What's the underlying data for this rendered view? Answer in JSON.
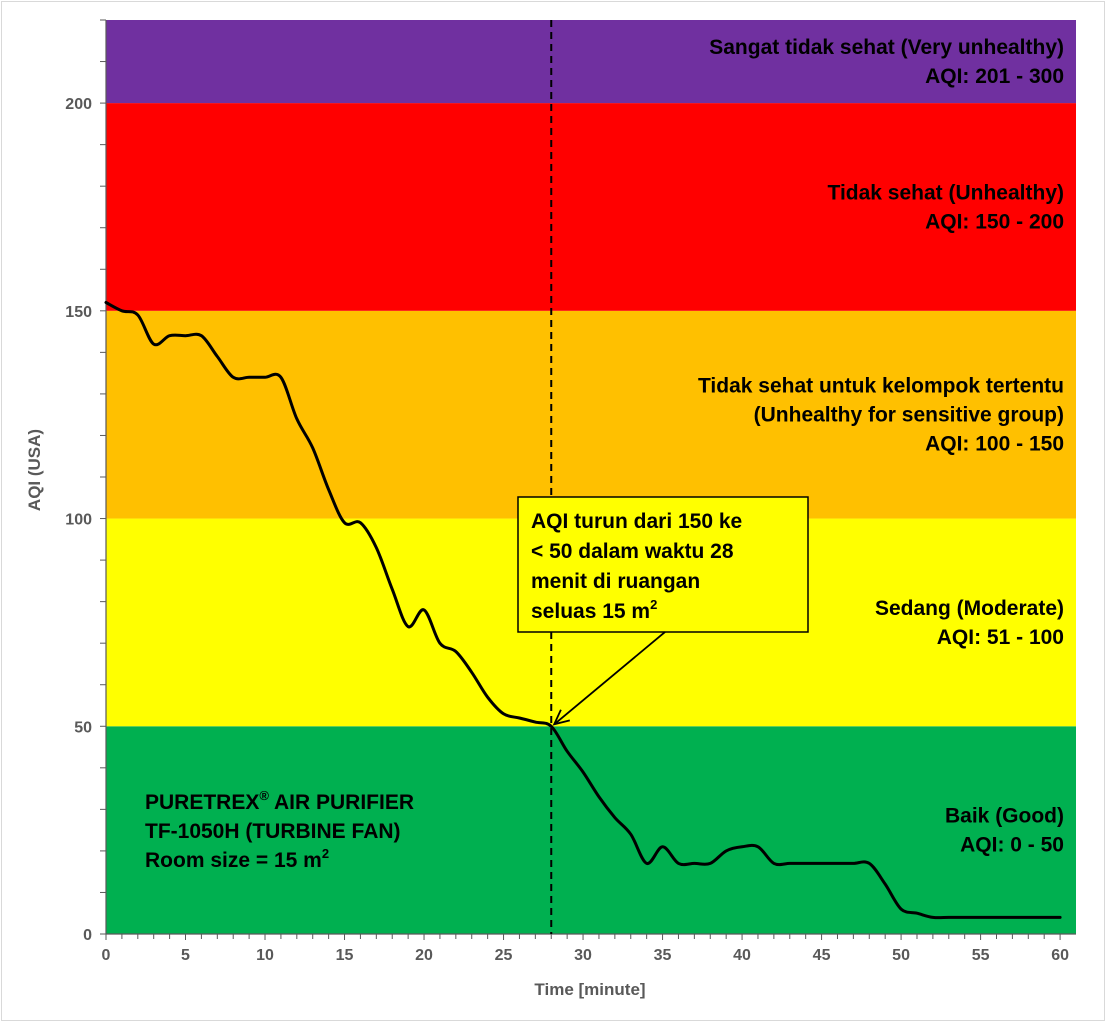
{
  "chart_data": {
    "type": "line",
    "xlabel": "Time [minute]",
    "ylabel": "AQI (USA)",
    "xlim": [
      0,
      61
    ],
    "ylim": [
      0,
      220
    ],
    "x_ticks": [
      0,
      5,
      10,
      15,
      20,
      25,
      30,
      35,
      40,
      45,
      50,
      55,
      60
    ],
    "y_ticks": [
      0,
      50,
      100,
      150,
      200
    ],
    "zones": [
      {
        "name": "good",
        "from": 0,
        "to": 50,
        "color": "#00b050",
        "label_lines": [
          "Baik (Good)",
          "AQI: 0 - 50"
        ]
      },
      {
        "name": "moderate",
        "from": 50,
        "to": 100,
        "color": "#ffff00",
        "label_lines": [
          "Sedang (Moderate)",
          "AQI: 51 - 100"
        ]
      },
      {
        "name": "sensitive",
        "from": 100,
        "to": 150,
        "color": "#ffc000",
        "label_lines": [
          "Tidak sehat untuk kelompok tertentu",
          "(Unhealthy for sensitive group)",
          "AQI: 100 - 150"
        ]
      },
      {
        "name": "unhealthy",
        "from": 150,
        "to": 200,
        "color": "#ff0000",
        "label_lines": [
          "Tidak sehat (Unhealthy)",
          "AQI: 150 - 200"
        ]
      },
      {
        "name": "very-unhealthy",
        "from": 200,
        "to": 220,
        "color": "#7030a0",
        "label_lines": [
          "Sangat tidak sehat (Very unhealthy)",
          "AQI: 201 - 300"
        ]
      }
    ],
    "series": [
      {
        "name": "AQI",
        "color": "#000000",
        "x": [
          0,
          1,
          2,
          3,
          4,
          5,
          6,
          7,
          8,
          9,
          10,
          11,
          12,
          13,
          14,
          15,
          16,
          17,
          18,
          19,
          20,
          21,
          22,
          23,
          24,
          25,
          26,
          27,
          28,
          29,
          30,
          31,
          32,
          33,
          34,
          35,
          36,
          37,
          38,
          39,
          40,
          41,
          42,
          43,
          44,
          45,
          46,
          47,
          48,
          49,
          50,
          51,
          52,
          53,
          54,
          55,
          56,
          57,
          58,
          59,
          60
        ],
        "y": [
          152,
          150,
          149,
          142,
          144,
          144,
          144,
          139,
          134,
          134,
          134,
          134,
          124,
          117,
          107,
          99,
          99,
          93,
          83,
          74,
          78,
          70,
          68,
          63,
          57,
          53,
          52,
          51,
          50,
          44,
          39,
          33,
          28,
          24,
          17,
          21,
          17,
          17,
          17,
          20,
          21,
          21,
          17,
          17,
          17,
          17,
          17,
          17,
          17,
          12,
          6,
          5,
          4,
          4,
          4,
          4,
          4,
          4,
          4,
          4,
          4
        ]
      }
    ],
    "reference_line": {
      "x": 28,
      "style": "dashed"
    },
    "annotation": {
      "lines": [
        "AQI turun dari 150 ke",
        "< 50 dalam waktu 28",
        "menit di ruangan",
        "seluas 15 m"
      ],
      "superscript": "2",
      "arrow_target": {
        "x": 28,
        "y": 50
      }
    },
    "product_note": {
      "brand": "PURETREX",
      "brand_mark": "®",
      "line1_rest": " AIR PURIFIER",
      "line2": "TF-1050H (TURBINE FAN)",
      "line3": "Room size = 15 m",
      "line3_sup": "2"
    }
  }
}
